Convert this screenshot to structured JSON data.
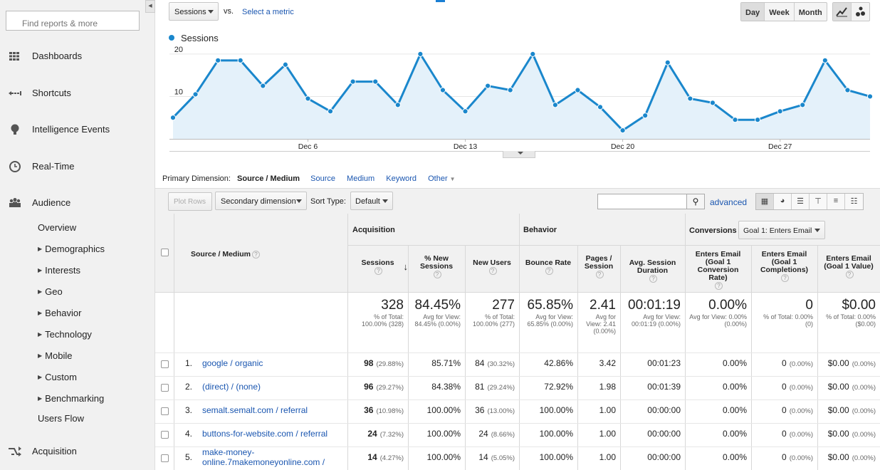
{
  "sidebar": {
    "search_placeholder": "Find reports & more",
    "items": [
      {
        "label": "Dashboards",
        "icon": "grid-icon"
      },
      {
        "label": "Shortcuts",
        "icon": "arrow-icon"
      },
      {
        "label": "Intelligence Events",
        "icon": "lightbulb-icon"
      },
      {
        "label": "Real-Time",
        "icon": "clock-icon"
      },
      {
        "label": "Audience",
        "icon": "people-icon"
      },
      {
        "label": "Acquisition",
        "icon": "split-arrow-icon"
      }
    ],
    "audience_sub": [
      "Overview",
      "Demographics",
      "Interests",
      "Geo",
      "Behavior",
      "Technology",
      "Mobile",
      "Custom",
      "Benchmarking",
      "Users Flow"
    ]
  },
  "chart_controls": {
    "metric": "Sessions",
    "vs": "vs.",
    "select_metric": "Select a metric",
    "periods": [
      "Day",
      "Week",
      "Month"
    ],
    "active_period": "Day"
  },
  "chart_data": {
    "type": "area",
    "series": [
      {
        "name": "Sessions",
        "values": [
          5,
          10.5,
          18.5,
          18.5,
          12.5,
          17.5,
          9.5,
          6.5,
          13.5,
          13.5,
          8,
          20,
          11.5,
          6.5,
          12.5,
          11.5,
          20,
          8,
          11.5,
          7.5,
          2,
          5.5,
          18,
          9.5,
          8.5,
          4.5,
          4.5,
          6.5,
          8,
          18.5,
          11.5,
          10
        ],
        "color": "#1a87cc"
      }
    ],
    "x_tick_labels": [
      "Dec 6",
      "Dec 13",
      "Dec 20",
      "Dec 27"
    ],
    "x_tick_indices": [
      6,
      13,
      20,
      27
    ],
    "y_ticks": [
      10,
      20
    ],
    "ylim": [
      0,
      22.5
    ]
  },
  "primary_dimension": {
    "label": "Primary Dimension:",
    "current": "Source / Medium",
    "links": [
      "Source",
      "Medium",
      "Keyword"
    ],
    "other": "Other"
  },
  "toolbar": {
    "plot_rows": "Plot Rows",
    "secondary_dimension": "Secondary dimension",
    "sort_type_label": "Sort Type:",
    "sort_type_value": "Default",
    "advanced": "advanced"
  },
  "table": {
    "dimension_header": "Source / Medium",
    "groups": {
      "acquisition": "Acquisition",
      "behavior": "Behavior",
      "conversions": "Conversions",
      "goal_select": "Goal 1: Enters Email"
    },
    "columns": [
      "Sessions",
      "% New Sessions",
      "New Users",
      "Bounce Rate",
      "Pages / Session",
      "Avg. Session Duration",
      "Enters Email (Goal 1 Conversion Rate)",
      "Enters Email (Goal 1 Completions)",
      "Enters Email (Goal 1 Value)"
    ],
    "totals": [
      {
        "big": "328",
        "small": "% of Total: 100.00% (328)"
      },
      {
        "big": "84.45%",
        "small": "Avg for View: 84.45% (0.00%)"
      },
      {
        "big": "277",
        "small": "% of Total: 100.00% (277)"
      },
      {
        "big": "65.85%",
        "small": "Avg for View: 65.85% (0.00%)"
      },
      {
        "big": "2.41",
        "small": "Avg for View: 2.41 (0.00%)"
      },
      {
        "big": "00:01:19",
        "small": "Avg for View: 00:01:19 (0.00%)"
      },
      {
        "big": "0.00%",
        "small": "Avg for View: 0.00% (0.00%)"
      },
      {
        "big": "0",
        "small": "% of Total: 0.00% (0)"
      },
      {
        "big": "$0.00",
        "small": "% of Total: 0.00% ($0.00)"
      }
    ],
    "rows": [
      {
        "num": "1.",
        "source": "google / organic",
        "sessions": "98",
        "sessions_pct": "(29.88%)",
        "new_sessions": "85.71%",
        "new_users": "84",
        "new_users_pct": "(30.32%)",
        "bounce": "42.86%",
        "pages": "3.42",
        "duration": "00:01:23",
        "conv_rate": "0.00%",
        "completions": "0",
        "completions_pct": "(0.00%)",
        "value": "$0.00",
        "value_pct": "(0.00%)"
      },
      {
        "num": "2.",
        "source": "(direct) / (none)",
        "sessions": "96",
        "sessions_pct": "(29.27%)",
        "new_sessions": "84.38%",
        "new_users": "81",
        "new_users_pct": "(29.24%)",
        "bounce": "72.92%",
        "pages": "1.98",
        "duration": "00:01:39",
        "conv_rate": "0.00%",
        "completions": "0",
        "completions_pct": "(0.00%)",
        "value": "$0.00",
        "value_pct": "(0.00%)"
      },
      {
        "num": "3.",
        "source": "semalt.semalt.com / referral",
        "sessions": "36",
        "sessions_pct": "(10.98%)",
        "new_sessions": "100.00%",
        "new_users": "36",
        "new_users_pct": "(13.00%)",
        "bounce": "100.00%",
        "pages": "1.00",
        "duration": "00:00:00",
        "conv_rate": "0.00%",
        "completions": "0",
        "completions_pct": "(0.00%)",
        "value": "$0.00",
        "value_pct": "(0.00%)"
      },
      {
        "num": "4.",
        "source": "buttons-for-website.com / referral",
        "sessions": "24",
        "sessions_pct": "(7.32%)",
        "new_sessions": "100.00%",
        "new_users": "24",
        "new_users_pct": "(8.66%)",
        "bounce": "100.00%",
        "pages": "1.00",
        "duration": "00:00:00",
        "conv_rate": "0.00%",
        "completions": "0",
        "completions_pct": "(0.00%)",
        "value": "$0.00",
        "value_pct": "(0.00%)"
      },
      {
        "num": "5.",
        "source_line1": "make-money-",
        "source_line2": "online.7makemoneyonline.com /",
        "sessions": "14",
        "sessions_pct": "(4.27%)",
        "new_sessions": "100.00%",
        "new_users": "14",
        "new_users_pct": "(5.05%)",
        "bounce": "100.00%",
        "pages": "1.00",
        "duration": "00:00:00",
        "conv_rate": "0.00%",
        "completions": "0",
        "completions_pct": "(0.00%)",
        "value": "$0.00",
        "value_pct": "(0.00%)"
      }
    ]
  }
}
